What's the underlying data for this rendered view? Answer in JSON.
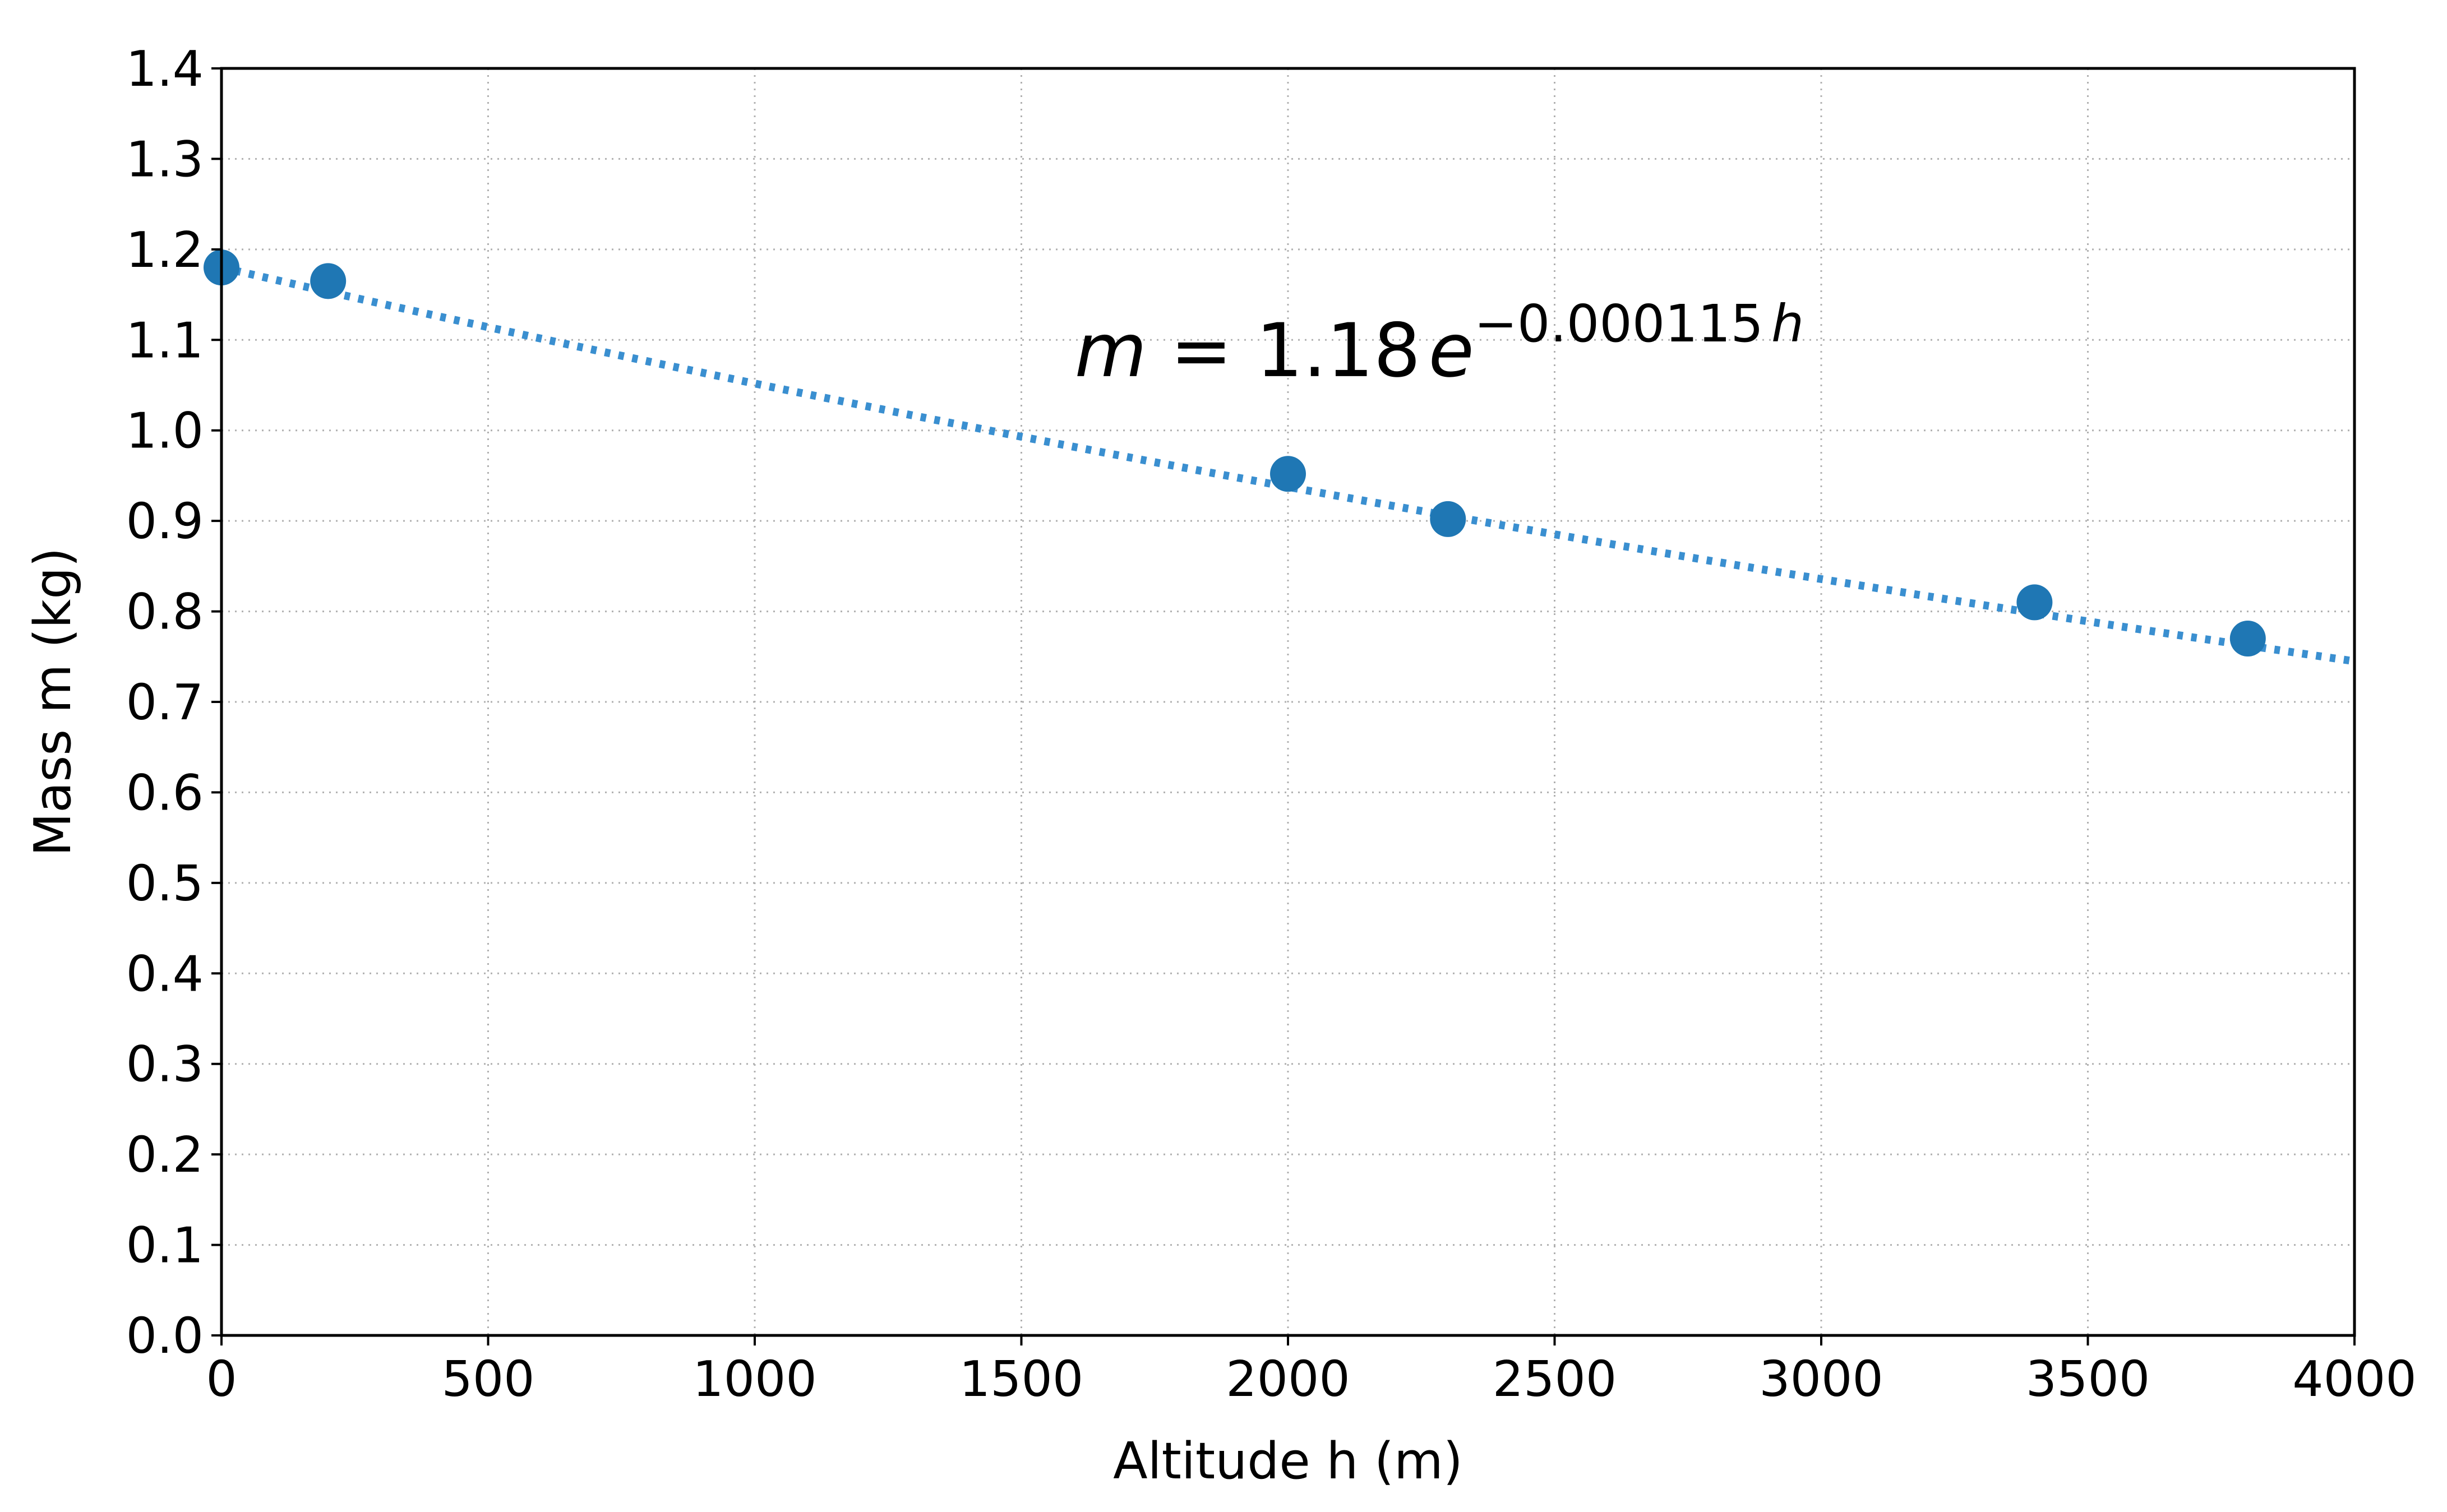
{
  "chart_data": {
    "type": "scatter",
    "title": "",
    "xlabel": "Altitude h (m)",
    "ylabel": "Mass m (kg)",
    "xlim": [
      0,
      4000
    ],
    "ylim": [
      0,
      1.4
    ],
    "xticks": [
      "0",
      "500",
      "1000",
      "1500",
      "2000",
      "2500",
      "3000",
      "3500",
      "4000"
    ],
    "yticks": [
      "0.0",
      "0.1",
      "0.2",
      "0.3",
      "0.4",
      "0.5",
      "0.6",
      "0.7",
      "0.8",
      "0.9",
      "1.0",
      "1.1",
      "1.2",
      "1.3",
      "1.4"
    ],
    "grid": true,
    "point_color": "#1f77b4",
    "fit_color": "#3a8fd0",
    "series": [
      {
        "x": [
          0,
          200,
          2000,
          2300,
          3400,
          3800
        ],
        "y": [
          1.18,
          1.165,
          0.952,
          0.902,
          0.81,
          0.77
        ]
      }
    ],
    "fit": {
      "a": 1.18,
      "b": -0.000115
    },
    "annotation": {
      "lhs": "m",
      "eq": " = ",
      "coef": "1.18",
      "base": "e",
      "exponent": "−0.000115",
      "exponent_var": "h",
      "x": 1600,
      "y": 1.06
    }
  }
}
